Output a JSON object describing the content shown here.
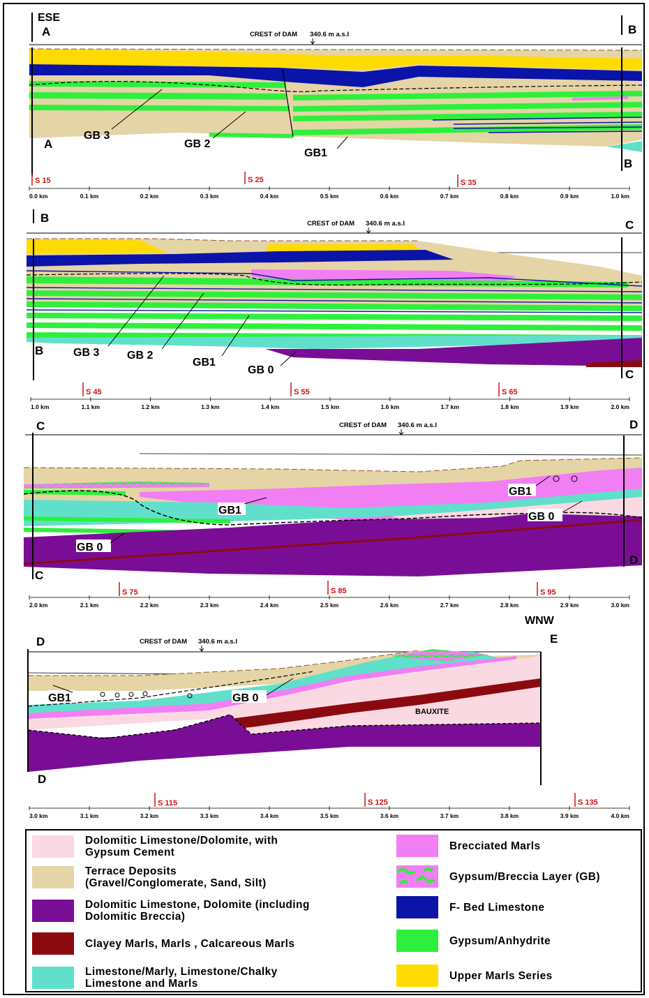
{
  "colors": {
    "dolomitic_gypsum": "#fbd9e3",
    "terrace": "#e5d4a6",
    "dolomitic_breccia": "#7a0d96",
    "clayey_marls": "#8b0a0f",
    "limestone_marly": "#60e0cb",
    "brecciated_marls": "#f27ef3",
    "gypsum_breccia": "#f27ef3",
    "f_bed": "#0a14a8",
    "gypsum_anhydrite": "#2ef03c",
    "upper_marls": "#ffdb00",
    "station_red": "#d01010"
  },
  "crest_label": "CREST of DAM",
  "crest_value": "340.6 m a.s.l",
  "direction_left": "ESE",
  "direction_right": "WNW",
  "panels": [
    {
      "top_left": "A",
      "top_right": "B",
      "bottom_left": "A",
      "bottom_right": "B",
      "stations": [
        "S 15",
        "S 25",
        "S 35"
      ],
      "ticks": [
        "0.0 km",
        "0.1 km",
        "0.2 km",
        "0.3 km",
        "0.4 km",
        "0.5 km",
        "0.6 km",
        "0.7 km",
        "0.8 km",
        "0.9 km",
        "1.0 km"
      ],
      "gb_labels": [
        "GB 3",
        "GB 2",
        "GB1"
      ]
    },
    {
      "top_left": "B",
      "top_right": "C",
      "bottom_left": "B",
      "bottom_right": "C",
      "stations": [
        "S 45",
        "S 55",
        "S 65"
      ],
      "ticks": [
        "1.0 km",
        "1.1 km",
        "1.2 km",
        "1.3 km",
        "1.4 km",
        "1.5 km",
        "1.6 km",
        "1.7 km",
        "1.8 km",
        "1.9 km",
        "2.0 km"
      ],
      "gb_labels": [
        "GB 3",
        "GB 2",
        "GB1",
        "GB 0"
      ]
    },
    {
      "top_left": "C",
      "top_right": "D",
      "bottom_left": "C",
      "bottom_right": "D",
      "stations": [
        "S 75",
        "S 85",
        "S 95"
      ],
      "ticks": [
        "2.0 km",
        "2.1 km",
        "2.2 km",
        "2.3 km",
        "2.4 km",
        "2.5 km",
        "2.6 km",
        "2.7 km",
        "2.8 km",
        "2.9 km",
        "3.0 km"
      ],
      "gb_labels": [
        "GB1",
        "GB 0",
        "GB1",
        "GB 0"
      ]
    },
    {
      "top_left": "D",
      "top_right": "E",
      "bottom_left": "D",
      "stations": [
        "S 115",
        "S 125",
        "S 135"
      ],
      "ticks": [
        "3.0 km",
        "3.1 km",
        "3.2 km",
        "3.3 km",
        "3.4 km",
        "3.5 km",
        "3.6 km",
        "3.7 km",
        "3.8 km",
        "3.9 km",
        "4.0 km"
      ],
      "gb_labels": [
        "GB1",
        "GB 0"
      ],
      "bauxite": "BAUXITE"
    }
  ],
  "legend": [
    {
      "key": "dolomitic_gypsum",
      "label": "Dolomitic Limestone/Dolomite, with\nGypsum Cement"
    },
    {
      "key": "terrace",
      "label": "Terrace Deposits\n(Gravel/Conglomerate, Sand, Silt)"
    },
    {
      "key": "dolomitic_breccia",
      "label": "Dolomitic Limestone, Dolomite (including\nDolomitic  Breccia)"
    },
    {
      "key": "clayey_marls",
      "label": "Clayey Marls, Marls , Calcareous Marls"
    },
    {
      "key": "limestone_marly",
      "label": "Limestone/Marly, Limestone/Chalky\nLimestone and Marls"
    },
    {
      "key": "brecciated_marls",
      "label": "Brecciated Marls"
    },
    {
      "key": "gypsum_breccia",
      "label": "Gypsum/Breccia Layer (GB)"
    },
    {
      "key": "f_bed",
      "label": "F- Bed Limestone"
    },
    {
      "key": "gypsum_anhydrite",
      "label": "Gypsum/Anhydrite"
    },
    {
      "key": "upper_marls",
      "label": "Upper Marls Series"
    }
  ]
}
